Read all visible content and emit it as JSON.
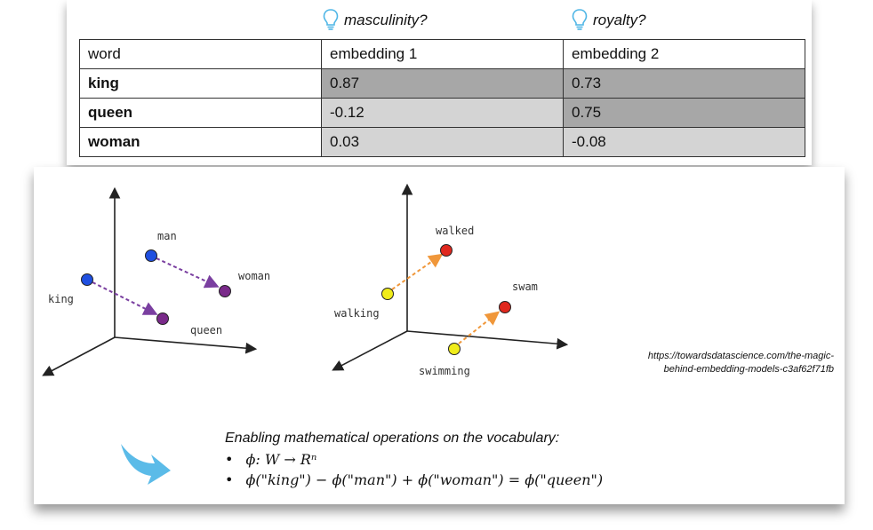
{
  "table_panel": {
    "headers_hints": [
      {
        "text": "masculinity?",
        "icon": "lightbulb-icon"
      },
      {
        "text": "royalty?",
        "icon": "lightbulb-icon"
      }
    ],
    "columns": [
      "word",
      "embedding 1",
      "embedding 2"
    ],
    "rows": [
      {
        "word": "king",
        "e1": "0.87",
        "e2": "0.73"
      },
      {
        "word": "queen",
        "e1": "-0.12",
        "e2": "0.75"
      },
      {
        "word": "woman",
        "e1": "0.03",
        "e2": "-0.08"
      }
    ],
    "colors": {
      "dark_cell": "#a7a7a7",
      "light_cell": "#d4d4d4",
      "bulb": "#4fb6e6"
    }
  },
  "diagram_left": {
    "labels": {
      "man": "man",
      "woman": "woman",
      "king": "king",
      "queen": "queen"
    },
    "colors": {
      "blue": "#1f4fe0",
      "purple": "#7a2a8a",
      "arrow": "#7a3fa0"
    }
  },
  "diagram_right": {
    "labels": {
      "walked": "walked",
      "swam": "swam",
      "walking": "walking",
      "swimming": "swimming"
    },
    "colors": {
      "yellow": "#f0ec1a",
      "red": "#e0281e",
      "arrow": "#f0973a"
    }
  },
  "source": {
    "line1": "https://towardsdatascience.com/the-magic-",
    "line2": "behind-embedding-models-c3af62f71fb"
  },
  "operations": {
    "title": "Enabling mathematical operations on the vocabulary:",
    "items": [
      "ϕ: W  →  Rⁿ",
      "ϕ(\"king\") − ϕ(\"man\") + ϕ(\"woman\") = ϕ(\"queen\")"
    ],
    "arrow_color": "#5bbbe8"
  }
}
